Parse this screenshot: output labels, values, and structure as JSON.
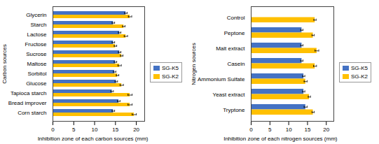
{
  "chart_data": [
    {
      "type": "bar",
      "orientation": "horizontal",
      "xlabel": "Inhibition zone of each carbon sources (mm)",
      "ylabel": "Carbon sources",
      "categories": [
        "Glycerin",
        "Starch",
        "Lactose",
        "Fructose",
        "Sucrose",
        "Maltose",
        "Sorbitol",
        "Glucose",
        "Tapioca starch",
        "Bread improver",
        "Corn starch"
      ],
      "series": [
        {
          "name": "SG-K5",
          "color": "#4472c4",
          "values": [
            17.5,
            14.5,
            16.0,
            14.5,
            16.0,
            15.0,
            14.8,
            15.2,
            14.2,
            15.8,
            14.5
          ],
          "errors": [
            0.3,
            0.3,
            0.3,
            0.3,
            0.3,
            0.3,
            0.3,
            0.3,
            0.3,
            0.3,
            0.3
          ]
        },
        {
          "name": "SG-K2",
          "color": "#ffc000",
          "values": [
            18.5,
            17.0,
            17.5,
            15.0,
            16.5,
            16.0,
            15.5,
            16.5,
            18.5,
            18.5,
            19.5
          ],
          "errors": [
            0.4,
            0.3,
            0.4,
            0.3,
            0.3,
            0.4,
            0.3,
            0.4,
            0.5,
            0.5,
            0.5
          ]
        }
      ],
      "xlim": [
        0,
        22
      ],
      "xticks": [
        0,
        5,
        10,
        15,
        20
      ],
      "legend": "center right"
    },
    {
      "type": "bar",
      "orientation": "horizontal",
      "xlabel": "Inhibition zone of each nitrogen sources (mm)",
      "ylabel": "Nitrogen sources",
      "categories": [
        "Control",
        "Peptone",
        "Malt extract",
        "Casein",
        "Ammonium Sulfate",
        "Yeast extract",
        "Tryptone"
      ],
      "series": [
        {
          "name": "SG-K5",
          "color": "#4472c4",
          "values": [
            0.0,
            13.5,
            13.5,
            13.5,
            14.0,
            14.0,
            14.5
          ],
          "errors": [
            0.0,
            0.3,
            0.3,
            0.3,
            0.3,
            0.3,
            0.4
          ]
        },
        {
          "name": "SG-K2",
          "color": "#ffc000",
          "values": [
            17.0,
            16.5,
            17.5,
            17.0,
            14.5,
            15.5,
            16.5
          ],
          "errors": [
            0.3,
            0.3,
            0.5,
            0.4,
            0.4,
            0.3,
            0.3
          ]
        }
      ],
      "xlim": [
        0,
        22
      ],
      "xticks": [
        0,
        5,
        10,
        15,
        20
      ],
      "legend": "center right"
    }
  ]
}
